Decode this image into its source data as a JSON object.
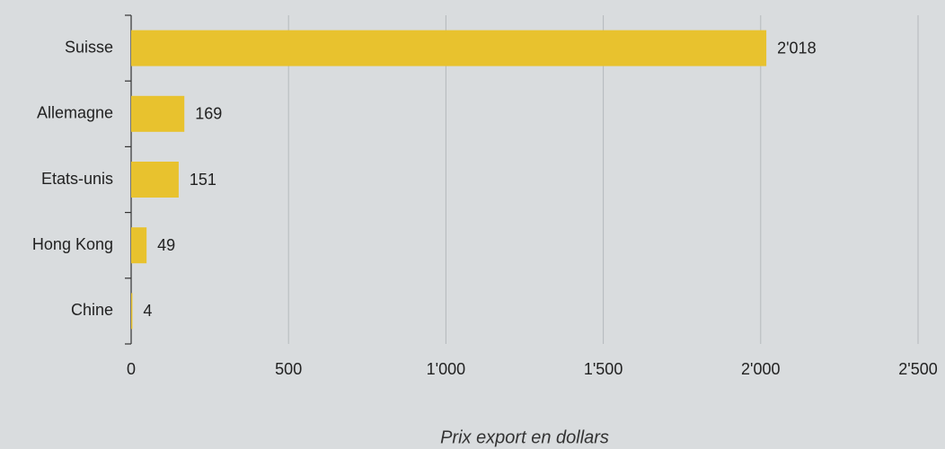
{
  "chart_data": {
    "type": "bar",
    "orientation": "horizontal",
    "categories": [
      "Suisse",
      "Allemagne",
      "Etats-unis",
      "Hong Kong",
      "Chine"
    ],
    "values": [
      2018,
      169,
      151,
      49,
      4
    ],
    "value_labels": [
      "2'018",
      "169",
      "151",
      "49",
      "4"
    ],
    "color": "#e8c22e",
    "x_label": "Prix export en dollars",
    "xlim": [
      0,
      2500
    ],
    "xticks": [
      0,
      500,
      {
        "value": 1000,
        "label": "1'000"
      },
      {
        "value": 1500,
        "label": "1'500"
      },
      {
        "value": 2000,
        "label": "2'000"
      },
      {
        "value": 2500,
        "label": "2'500"
      }
    ],
    "grid": true
  }
}
